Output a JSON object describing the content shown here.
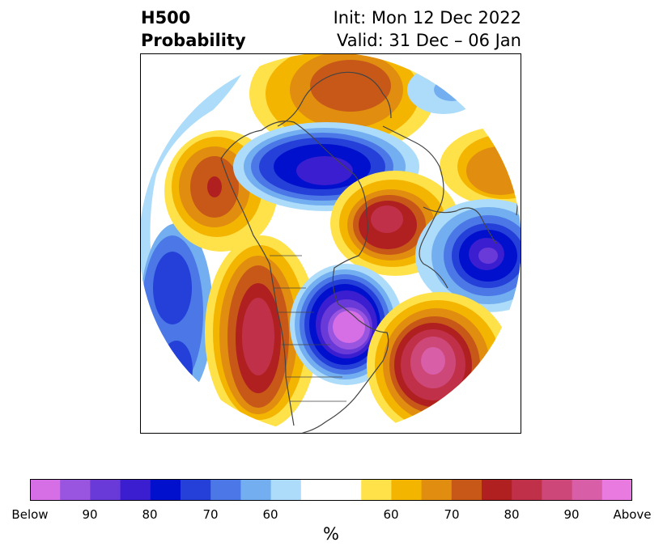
{
  "title": {
    "left_line1": "H500",
    "left_line2": "Probability",
    "right_line1": "Init: Mon 12 Dec 2022",
    "right_line2": "Valid: 31 Dec – 06 Jan"
  },
  "colorbar": {
    "unit": "%",
    "tick_labels": [
      "Below",
      "90",
      "80",
      "70",
      "60",
      "60",
      "70",
      "80",
      "90",
      "Above"
    ],
    "colors": [
      "#d66fe6",
      "#9a55e0",
      "#6a3ad8",
      "#3a1ed0",
      "#0010cc",
      "#2540d8",
      "#4b78e6",
      "#72aef0",
      "#acdcfa",
      "#ffffff",
      "#ffe24a",
      "#f4b500",
      "#e08d10",
      "#c85818",
      "#b02020",
      "#c03048",
      "#cd4878",
      "#d85ea8",
      "#e87ae0"
    ]
  },
  "map": {
    "anomaly_colors": {
      "below_strong": "#d66fe6",
      "below_mid": "#3a1ed0",
      "below_weak": "#acdcfa",
      "above_weak": "#ffe24a",
      "above_mid": "#c85818",
      "above_strong": "#d85ea8"
    }
  }
}
